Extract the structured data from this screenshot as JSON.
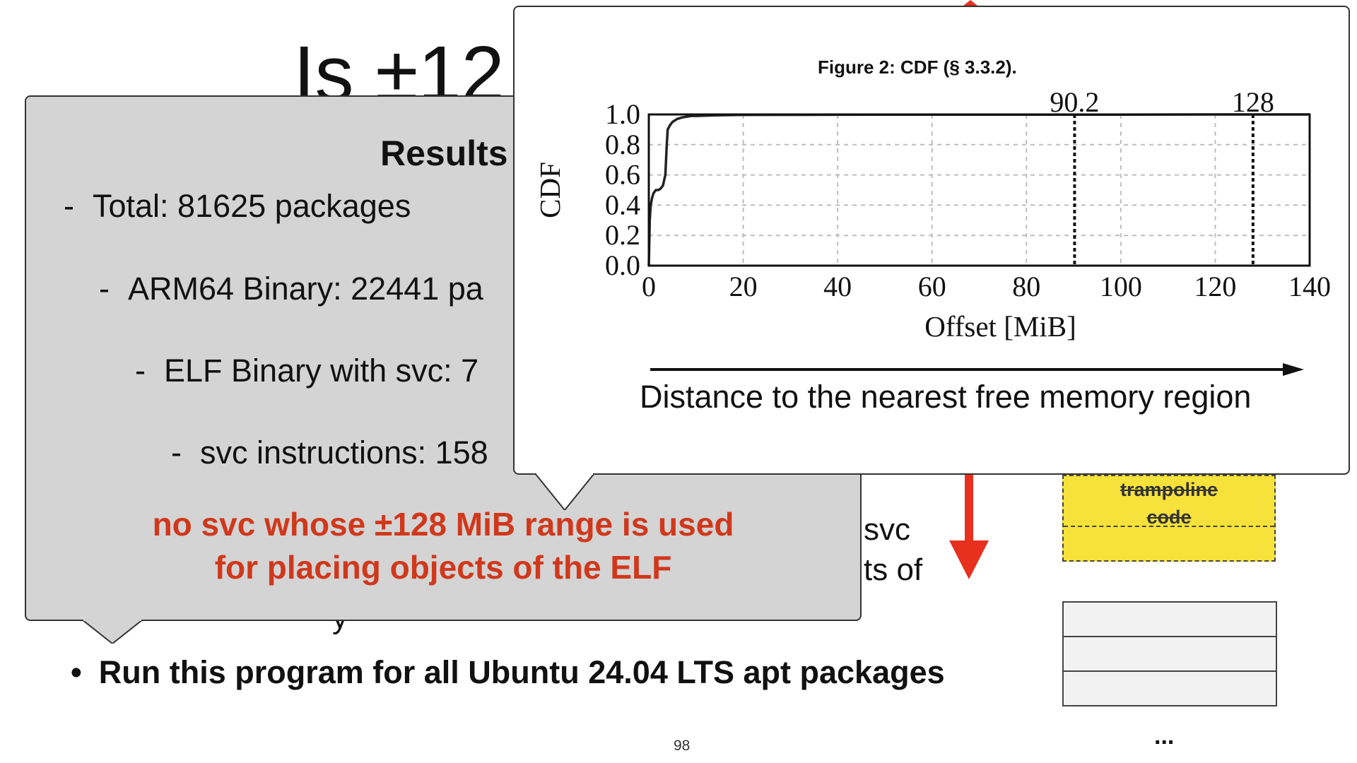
{
  "slide": {
    "title": "Is ±12",
    "bullet_main": "Run this program for all Ubuntu 24.04 LTS apt packages",
    "bullet_symbol": "•",
    "fragment_svc": "svc",
    "fragment_ts_of": "ts of",
    "fragment_y": "y",
    "page_number": "98",
    "trampoline_line1": "trampoline",
    "trampoline_line2": "code",
    "ellipsis": "...",
    "accent_red": "#e8301f",
    "trampoline_fill": "#f7e23c"
  },
  "results": {
    "heading": "Results",
    "dash": "-",
    "lines": [
      "Total: 81625 packages",
      "ARM64 Binary: 22441 pa",
      "ELF Binary with svc: 7",
      "svc instructions: 158"
    ],
    "conclusion_line1": "no svc whose ±128 MiB range is used",
    "conclusion_line2": "for placing objects of the ELF",
    "conclusion_color": "#d0381c",
    "background": "#d4d4d4"
  },
  "figure": {
    "caption": "Figure 2: CDF (§ 3.3.2).",
    "arrow_label": "Distance to the nearest free memory region"
  },
  "chart_data": {
    "type": "line",
    "title": "",
    "xlabel": "Offset [MiB]",
    "ylabel": "CDF",
    "xlim": [
      0,
      140
    ],
    "ylim": [
      0,
      1.0
    ],
    "xticks": [
      0,
      20,
      40,
      60,
      80,
      100,
      120,
      140
    ],
    "yticks": [
      "0.0",
      "0.2",
      "0.4",
      "0.6",
      "0.8",
      "1.0"
    ],
    "grid": true,
    "series": [
      {
        "x": [
          0,
          0.2,
          0.4,
          0.7,
          1.0,
          1.5,
          2.0,
          2.5,
          3.0,
          3.2,
          3.5,
          3.8,
          4.0,
          4.5,
          5.0,
          6.0,
          7.0,
          8.0,
          9.0,
          10.0,
          15.0,
          20.0,
          40.0,
          60.0,
          80.0,
          100.0,
          120.0,
          140.0
        ],
        "y": [
          0.0,
          0.3,
          0.4,
          0.45,
          0.48,
          0.5,
          0.5,
          0.51,
          0.53,
          0.56,
          0.6,
          0.8,
          0.9,
          0.93,
          0.95,
          0.97,
          0.98,
          0.985,
          0.99,
          0.99,
          0.995,
          0.997,
          0.998,
          0.999,
          0.999,
          0.999,
          1.0,
          1.0
        ]
      }
    ],
    "annotations": [
      {
        "x": 90.2,
        "label": "90.2"
      },
      {
        "x": 128,
        "label": "128"
      }
    ]
  }
}
